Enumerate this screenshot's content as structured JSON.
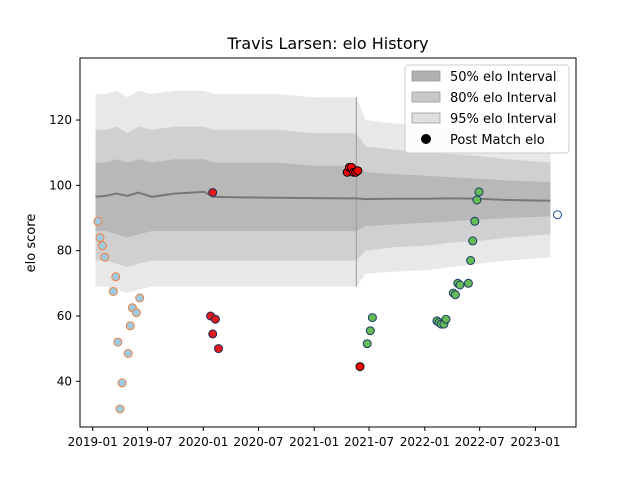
{
  "chart_data": {
    "type": "scatter",
    "title": "Travis Larsen: elo History",
    "xlabel": "",
    "ylabel": "elo score",
    "xlim": [
      "2018-11-20",
      "2023-05-15"
    ],
    "ylim": [
      26,
      139
    ],
    "x_ticks": [
      "2019-01",
      "2019-07",
      "2020-01",
      "2020-07",
      "2021-01",
      "2021-07",
      "2022-01",
      "2022-07",
      "2023-01"
    ],
    "y_ticks": [
      40,
      60,
      80,
      100,
      120
    ],
    "grid": false,
    "legend_position": "top-right",
    "legend": [
      {
        "label": "50% elo Interval",
        "color": "#b0b0b0"
      },
      {
        "label": "80% elo Interval",
        "color": "#c8c8c8"
      },
      {
        "label": "95% elo Interval",
        "color": "#e0e0e0"
      },
      {
        "label": "Post Match elo",
        "color": "#000000"
      }
    ],
    "intervals": {
      "x": [
        "2019-01-10",
        "2019-02-15",
        "2019-03-20",
        "2019-04-25",
        "2019-06-01",
        "2019-07-15",
        "2019-10-01",
        "2020-01-05",
        "2020-02-01",
        "2020-05-01",
        "2020-09-01",
        "2021-01-01",
        "2021-04-15",
        "2021-05-20",
        "2021-06-20",
        "2021-09-15",
        "2022-01-01",
        "2022-04-01",
        "2022-07-01",
        "2022-10-01",
        "2023-02-20"
      ],
      "center": [
        96.5,
        96.8,
        97.5,
        96.8,
        97.8,
        96.5,
        97.5,
        98.0,
        96.5,
        96.3,
        96.2,
        96.1,
        96.0,
        96.0,
        95.8,
        95.9,
        95.9,
        96.0,
        95.9,
        95.5,
        95.3
      ],
      "lower50": [
        86,
        86,
        85,
        84,
        85,
        86,
        86,
        86,
        86,
        86,
        86,
        86,
        86,
        86,
        87.5,
        88,
        88.5,
        89,
        89.5,
        90,
        90.5
      ],
      "upper50": [
        107,
        107,
        108,
        107,
        108,
        107,
        108,
        108,
        107,
        107,
        107,
        106,
        106,
        106,
        104,
        103.5,
        103,
        102.5,
        102,
        101.5,
        101
      ],
      "lower80": [
        77,
        77,
        76,
        75,
        76,
        77,
        77,
        77,
        77,
        77,
        77,
        77,
        77,
        77,
        80,
        81,
        81.5,
        82.5,
        83,
        84,
        85
      ],
      "upper80": [
        117,
        117,
        118,
        116,
        118,
        117,
        118,
        118,
        117,
        117,
        117,
        116,
        116,
        116,
        112,
        111,
        110,
        109.5,
        109,
        108,
        107
      ],
      "lower95": [
        69,
        69,
        68,
        67,
        68,
        69,
        69,
        69,
        69,
        69,
        69,
        69,
        69,
        69,
        73,
        73.5,
        74,
        75,
        76,
        77,
        78
      ],
      "upper95": [
        128,
        128,
        129,
        127,
        129,
        128,
        129,
        129,
        128,
        128,
        128,
        127,
        127,
        127,
        120,
        119,
        118,
        117,
        116,
        115,
        114
      ],
      "band_end": "2021-05-20"
    },
    "series": [
      {
        "face_color": "#9ecae1",
        "edge_color": "#f08040",
        "points": [
          [
            "2019-01-18",
            89
          ],
          [
            "2019-01-25",
            84
          ],
          [
            "2019-02-02",
            81.5
          ],
          [
            "2019-02-10",
            78
          ],
          [
            "2019-03-18",
            72
          ],
          [
            "2019-03-10",
            67.5
          ],
          [
            "2019-03-25",
            52
          ],
          [
            "2019-04-01",
            31.5
          ],
          [
            "2019-04-08",
            39.5
          ],
          [
            "2019-04-28",
            48.5
          ],
          [
            "2019-05-05",
            57
          ],
          [
            "2019-05-12",
            62.5
          ],
          [
            "2019-05-25",
            61
          ],
          [
            "2019-06-05",
            65.5
          ]
        ]
      },
      {
        "face_color": "#e31a1c",
        "edge_color": "#1a2a5a",
        "points": [
          [
            "2020-02-01",
            97.8
          ],
          [
            "2020-01-25",
            60
          ],
          [
            "2020-02-10",
            59
          ],
          [
            "2020-02-01",
            54.5
          ],
          [
            "2020-02-20",
            50
          ]
        ]
      },
      {
        "face_color": "#ff0000",
        "edge_color": "#000000",
        "points": [
          [
            "2021-04-20",
            104
          ],
          [
            "2021-04-27",
            105.5
          ],
          [
            "2021-05-04",
            105.5
          ],
          [
            "2021-05-11",
            104
          ],
          [
            "2021-05-18",
            104
          ],
          [
            "2021-05-25",
            104.5
          ],
          [
            "2021-06-01",
            44.5
          ]
        ]
      },
      {
        "face_color": "#66bb55",
        "edge_color": "#1a3a6a",
        "points": [
          [
            "2021-06-25",
            51.5
          ],
          [
            "2021-07-05",
            55.5
          ],
          [
            "2021-07-12",
            59.5
          ],
          [
            "2022-02-10",
            58.5
          ],
          [
            "2022-02-17",
            58
          ],
          [
            "2022-02-24",
            57.5
          ],
          [
            "2022-03-05",
            57.5
          ],
          [
            "2022-03-12",
            59
          ],
          [
            "2022-04-05",
            67
          ],
          [
            "2022-04-12",
            66.5
          ],
          [
            "2022-04-20",
            70
          ],
          [
            "2022-04-27",
            69.5
          ],
          [
            "2022-05-25",
            70
          ],
          [
            "2022-06-01",
            77
          ],
          [
            "2022-06-08",
            83
          ],
          [
            "2022-06-15",
            89
          ],
          [
            "2022-06-22",
            95.5
          ],
          [
            "2022-06-29",
            98
          ]
        ]
      },
      {
        "face_color": "#ffffff",
        "edge_color": "#1f4e9a",
        "points": [
          [
            "2023-03-15",
            91
          ]
        ]
      }
    ]
  }
}
